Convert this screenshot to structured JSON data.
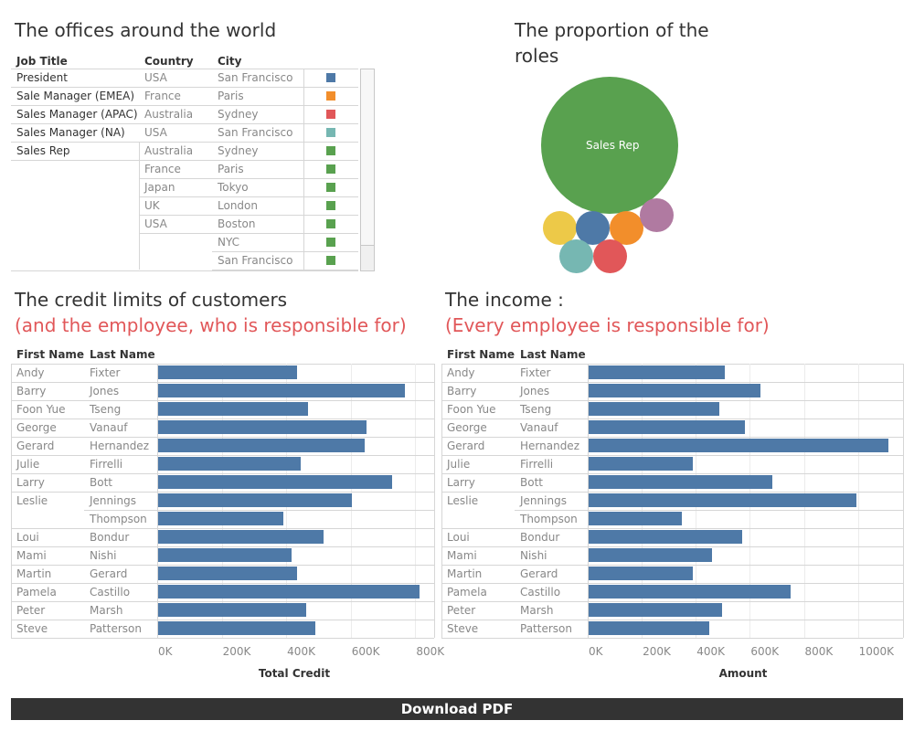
{
  "offices": {
    "title": "The offices around the world",
    "headers": [
      "Job Title",
      "Country",
      "City"
    ],
    "rows": [
      {
        "job": "President",
        "country": "USA",
        "city": "San Francisco",
        "color": "#4e79a7"
      },
      {
        "job": "Sale Manager (EMEA)",
        "country": "France",
        "city": "Paris",
        "color": "#f28e2b"
      },
      {
        "job": "Sales Manager (APAC)",
        "country": "Australia",
        "city": "Sydney",
        "color": "#e15759"
      },
      {
        "job": "Sales Manager (NA)",
        "country": "USA",
        "city": "San Francisco",
        "color": "#76b7b2"
      },
      {
        "job": "Sales Rep",
        "country": "Australia",
        "city": "Sydney",
        "color": "#59a14f"
      },
      {
        "job": "",
        "country": "France",
        "city": "Paris",
        "color": "#59a14f"
      },
      {
        "job": "",
        "country": "Japan",
        "city": "Tokyo",
        "color": "#59a14f"
      },
      {
        "job": "",
        "country": "UK",
        "city": "London",
        "color": "#59a14f"
      },
      {
        "job": "",
        "country": "USA",
        "city": "Boston",
        "color": "#59a14f"
      },
      {
        "job": "",
        "country": "",
        "city": "NYC",
        "color": "#59a14f"
      },
      {
        "job": "",
        "country": "",
        "city": "San Francisco",
        "color": "#59a14f"
      }
    ]
  },
  "roles": {
    "title_line1": "The proportion of the",
    "title_line2": "roles",
    "main_label": "Sales Rep",
    "bubble_colors": [
      "#59a14f",
      "#edc948",
      "#4e79a7",
      "#f28e2b",
      "#b07aa1",
      "#76b7b2",
      "#e15759"
    ]
  },
  "credit": {
    "title": "The credit limits of customers",
    "subtitle": "(and the employee, who is responsible for)"
  },
  "income": {
    "title": "The income :",
    "subtitle": "(Every employee is responsible for)"
  },
  "chart_data": [
    {
      "type": "bar",
      "title": "The credit limits of customers",
      "subtitle": "(and the employee, who is responsible for)",
      "row_headers": [
        "First Name",
        "Last Name"
      ],
      "first_names": [
        "Andy",
        "Barry",
        "Foon Yue",
        "George",
        "Gerard",
        "Julie",
        "Larry",
        "Leslie",
        "",
        "Loui",
        "Mami",
        "Martin",
        "Pamela",
        "Peter",
        "Steve"
      ],
      "last_names": [
        "Fixter",
        "Jones",
        "Tseng",
        "Vanauf",
        "Hernandez",
        "Firrelli",
        "Bott",
        "Jennings",
        "Thompson",
        "Bondur",
        "Nishi",
        "Gerard",
        "Castillo",
        "Marsh",
        "Patterson"
      ],
      "values": [
        430000,
        765000,
        465000,
        645000,
        640000,
        443000,
        725000,
        600000,
        388000,
        513000,
        415000,
        432000,
        810000,
        460000,
        488000
      ],
      "xlabel": "Total Credit",
      "xlim": [
        0,
        850000
      ],
      "ticks": [
        0,
        200000,
        400000,
        600000,
        800000
      ],
      "tick_labels": [
        "0K",
        "200K",
        "400K",
        "600K",
        "800K"
      ]
    },
    {
      "type": "bar",
      "title": "The income :",
      "subtitle": "(Every employee is responsible for)",
      "row_headers": [
        "First Name",
        "Last Name"
      ],
      "first_names": [
        "Andy",
        "Barry",
        "Foon Yue",
        "George",
        "Gerard",
        "Julie",
        "Larry",
        "Leslie",
        "",
        "Loui",
        "Mami",
        "Martin",
        "Pamela",
        "Peter",
        "Steve"
      ],
      "last_names": [
        "Fixter",
        "Jones",
        "Tseng",
        "Vanauf",
        "Hernandez",
        "Firrelli",
        "Bott",
        "Jennings",
        "Thompson",
        "Bondur",
        "Nishi",
        "Gerard",
        "Castillo",
        "Marsh",
        "Patterson"
      ],
      "values": [
        505000,
        635000,
        485000,
        580000,
        1110000,
        385000,
        680000,
        990000,
        345000,
        568000,
        455000,
        385000,
        748000,
        495000,
        445000
      ],
      "xlabel": "Amount",
      "xlim": [
        0,
        1150000
      ],
      "ticks": [
        0,
        200000,
        400000,
        600000,
        800000,
        1000000
      ],
      "tick_labels": [
        "0K",
        "200K",
        "400K",
        "600K",
        "800K",
        "1000K"
      ]
    }
  ],
  "footer": {
    "download_label": "Download PDF"
  }
}
